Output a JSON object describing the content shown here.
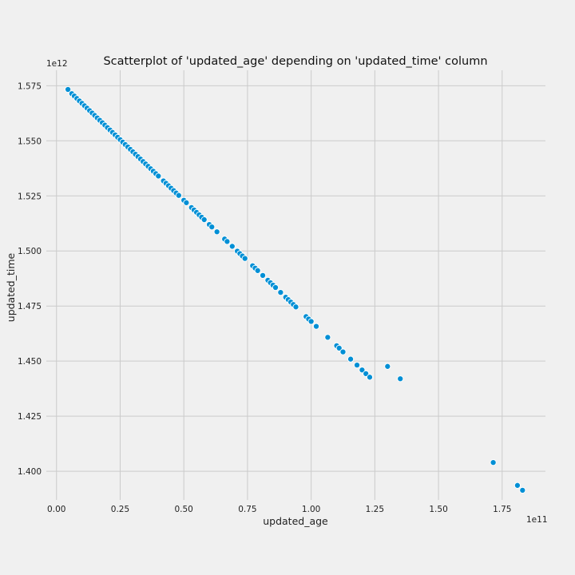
{
  "chart_data": {
    "type": "scatter",
    "title": "Scatterplot of 'updated_age' depending on 'updated_time' column",
    "xlabel": "updated_age",
    "ylabel": "updated_time",
    "x_offset_label": "1e11",
    "y_offset_label": "1e12",
    "x_tick_labels": [
      "0.00",
      "0.25",
      "0.50",
      "0.75",
      "1.00",
      "1.25",
      "1.50",
      "1.75"
    ],
    "x_tick_values": [
      0.0,
      0.25,
      0.5,
      0.75,
      1.0,
      1.25,
      1.5,
      1.75
    ],
    "y_tick_labels": [
      "1.400",
      "1.425",
      "1.450",
      "1.475",
      "1.500",
      "1.525",
      "1.550",
      "1.575"
    ],
    "y_tick_values": [
      1.4,
      1.425,
      1.45,
      1.475,
      1.5,
      1.525,
      1.55,
      1.575
    ],
    "xlim": [
      -0.04,
      1.92
    ],
    "ylim": [
      1.387,
      1.582
    ],
    "grid": true,
    "marker_color": "#008fd5",
    "marker_edge_color": "#ffffff",
    "x": [
      0.045,
      0.06,
      0.07,
      0.08,
      0.09,
      0.1,
      0.11,
      0.12,
      0.13,
      0.14,
      0.15,
      0.16,
      0.17,
      0.18,
      0.19,
      0.2,
      0.21,
      0.22,
      0.23,
      0.24,
      0.25,
      0.26,
      0.27,
      0.28,
      0.29,
      0.3,
      0.31,
      0.32,
      0.33,
      0.34,
      0.35,
      0.36,
      0.37,
      0.38,
      0.39,
      0.4,
      0.42,
      0.43,
      0.44,
      0.45,
      0.46,
      0.47,
      0.48,
      0.5,
      0.51,
      0.53,
      0.54,
      0.55,
      0.56,
      0.57,
      0.58,
      0.6,
      0.61,
      0.63,
      0.66,
      0.67,
      0.69,
      0.71,
      0.72,
      0.73,
      0.74,
      0.77,
      0.78,
      0.79,
      0.81,
      0.83,
      0.84,
      0.85,
      0.86,
      0.88,
      0.9,
      0.91,
      0.92,
      0.93,
      0.94,
      0.98,
      0.99,
      1.0,
      1.02,
      1.065,
      1.1,
      1.11,
      1.125,
      1.155,
      1.18,
      1.2,
      1.215,
      1.23,
      1.3,
      1.35,
      1.715,
      1.81,
      1.83
    ],
    "y": [
      1.5733,
      1.5714,
      1.5703,
      1.5692,
      1.5681,
      1.567,
      1.5659,
      1.5648,
      1.5637,
      1.5626,
      1.5615,
      1.5604,
      1.5593,
      1.5582,
      1.5571,
      1.556,
      1.5549,
      1.5538,
      1.5527,
      1.5516,
      1.5505,
      1.5494,
      1.5483,
      1.5472,
      1.5461,
      1.545,
      1.5439,
      1.5428,
      1.5417,
      1.5406,
      1.5395,
      1.5384,
      1.5373,
      1.5362,
      1.5351,
      1.534,
      1.5318,
      1.5307,
      1.5296,
      1.5285,
      1.5274,
      1.5263,
      1.5252,
      1.523,
      1.5219,
      1.5197,
      1.5186,
      1.5175,
      1.5164,
      1.5153,
      1.5142,
      1.512,
      1.5109,
      1.5087,
      1.5054,
      1.5043,
      1.5021,
      1.4999,
      1.4988,
      1.4977,
      1.4966,
      1.4933,
      1.4922,
      1.4911,
      1.4889,
      1.4867,
      1.4856,
      1.4845,
      1.4834,
      1.4812,
      1.479,
      1.4779,
      1.4768,
      1.4757,
      1.4746,
      1.4702,
      1.4691,
      1.468,
      1.4658,
      1.4608,
      1.457,
      1.4559,
      1.4542,
      1.4509,
      1.4482,
      1.446,
      1.4443,
      1.4427,
      1.4476,
      1.442,
      1.404,
      1.3936,
      1.3914
    ]
  }
}
